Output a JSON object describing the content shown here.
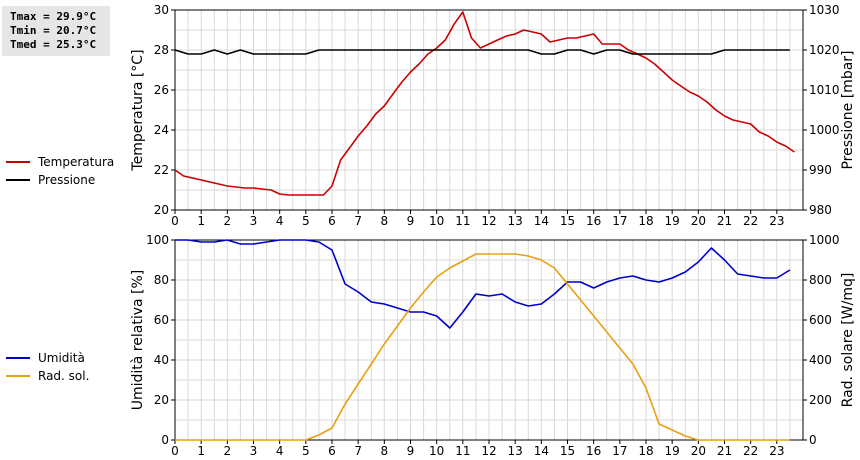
{
  "stats": {
    "tmax": "Tmax = 29.9°C",
    "tmin": "Tmin = 20.7°C",
    "tmed": "Tmed = 25.3°C"
  },
  "chart_data": [
    {
      "type": "line",
      "x_ticks": [
        0,
        1,
        2,
        3,
        4,
        5,
        6,
        7,
        8,
        9,
        10,
        11,
        12,
        13,
        14,
        15,
        16,
        17,
        18,
        19,
        20,
        21,
        22,
        23
      ],
      "xlim": [
        0,
        24
      ],
      "ylabel_left": "Temperatura [°C]",
      "ylabel_right": "Pressione [mbar]",
      "ylim_left": [
        20,
        30
      ],
      "yticks_left": [
        20,
        22,
        24,
        26,
        28,
        30
      ],
      "ylim_right": [
        980,
        1030
      ],
      "yticks_right": [
        980,
        990,
        1000,
        1010,
        1020,
        1030
      ],
      "grid": true,
      "legend_position": "left",
      "series": [
        {
          "name": "Temperatura",
          "axis": "left",
          "color": "#cc0000",
          "x": [
            0,
            0.33,
            0.67,
            1,
            1.33,
            1.67,
            2,
            2.33,
            2.67,
            3,
            3.33,
            3.67,
            4,
            4.33,
            4.67,
            5,
            5.33,
            5.67,
            6,
            6.33,
            6.67,
            7,
            7.33,
            7.67,
            8,
            8.33,
            8.67,
            9,
            9.33,
            9.67,
            10,
            10.33,
            10.67,
            11,
            11.33,
            11.67,
            12,
            12.33,
            12.67,
            13,
            13.33,
            13.67,
            14,
            14.33,
            14.67,
            15,
            15.33,
            15.67,
            16,
            16.33,
            16.67,
            17,
            17.33,
            17.67,
            18,
            18.33,
            18.67,
            19,
            19.33,
            19.67,
            20,
            20.33,
            20.67,
            21,
            21.33,
            21.67,
            22,
            22.33,
            22.67,
            23,
            23.33,
            23.67
          ],
          "values": [
            22.0,
            21.7,
            21.6,
            21.5,
            21.4,
            21.3,
            21.2,
            21.15,
            21.1,
            21.1,
            21.05,
            21.0,
            20.8,
            20.75,
            20.75,
            20.75,
            20.75,
            20.75,
            21.2,
            22.5,
            23.1,
            23.7,
            24.2,
            24.8,
            25.2,
            25.8,
            26.4,
            26.9,
            27.3,
            27.8,
            28.1,
            28.5,
            29.3,
            29.9,
            28.6,
            28.1,
            28.3,
            28.5,
            28.7,
            28.8,
            29.0,
            28.9,
            28.8,
            28.4,
            28.5,
            28.6,
            28.6,
            28.7,
            28.8,
            28.3,
            28.3,
            28.3,
            28.0,
            27.8,
            27.6,
            27.3,
            26.9,
            26.5,
            26.2,
            25.9,
            25.7,
            25.4,
            25.0,
            24.7,
            24.5,
            24.4,
            24.3,
            23.9,
            23.7,
            23.4,
            23.2,
            22.9
          ]
        },
        {
          "name": "Pressione",
          "axis": "right",
          "color": "#000000",
          "x": [
            0,
            0.5,
            1,
            1.5,
            2,
            2.5,
            3,
            3.5,
            4,
            4.5,
            5,
            5.5,
            6,
            6.5,
            7,
            7.5,
            8,
            8.5,
            9,
            9.5,
            10,
            10.5,
            11,
            11.5,
            12,
            12.5,
            13,
            13.5,
            14,
            14.5,
            15,
            15.5,
            16,
            16.5,
            17,
            17.5,
            18,
            18.5,
            19,
            19.5,
            20,
            20.5,
            21,
            21.5,
            22,
            22.5,
            23,
            23.5
          ],
          "values": [
            1020,
            1019,
            1019,
            1020,
            1019,
            1020,
            1019,
            1019,
            1019,
            1019,
            1019,
            1020,
            1020,
            1020,
            1020,
            1020,
            1020,
            1020,
            1020,
            1020,
            1020,
            1020,
            1020,
            1020,
            1020,
            1020,
            1020,
            1020,
            1019,
            1019,
            1020,
            1020,
            1019,
            1020,
            1020,
            1019,
            1019,
            1019,
            1019,
            1019,
            1019,
            1019,
            1020,
            1020,
            1020,
            1020,
            1020,
            1020
          ]
        }
      ]
    },
    {
      "type": "line",
      "x_ticks": [
        0,
        1,
        2,
        3,
        4,
        5,
        6,
        7,
        8,
        9,
        10,
        11,
        12,
        13,
        14,
        15,
        16,
        17,
        18,
        19,
        20,
        21,
        22,
        23
      ],
      "xlim": [
        0,
        24
      ],
      "ylabel_left": "Umidità relativa [%]",
      "ylabel_right": "Rad. solare [W/mq]",
      "ylim_left": [
        0,
        100
      ],
      "yticks_left": [
        0,
        20,
        40,
        60,
        80,
        100
      ],
      "ylim_right": [
        0,
        1000
      ],
      "yticks_right": [
        0,
        200,
        400,
        600,
        800,
        1000
      ],
      "grid": true,
      "legend_position": "left",
      "series": [
        {
          "name": "Umidità",
          "axis": "left",
          "color": "#0000cc",
          "x": [
            0,
            0.5,
            1,
            1.5,
            2,
            2.5,
            3,
            3.5,
            4,
            4.5,
            5,
            5.5,
            6,
            6.5,
            7,
            7.5,
            8,
            8.5,
            9,
            9.5,
            10,
            10.5,
            11,
            11.5,
            12,
            12.5,
            13,
            13.5,
            14,
            14.5,
            15,
            15.5,
            16,
            16.5,
            17,
            17.5,
            18,
            18.5,
            19,
            19.5,
            20,
            20.5,
            21,
            21.5,
            22,
            22.5,
            23,
            23.5
          ],
          "values": [
            100,
            100,
            99,
            99,
            100,
            98,
            98,
            99,
            100,
            100,
            100,
            99,
            95,
            78,
            74,
            69,
            68,
            66,
            64,
            64,
            62,
            56,
            64,
            73,
            72,
            73,
            69,
            67,
            68,
            73,
            79,
            79,
            76,
            79,
            81,
            82,
            80,
            79,
            81,
            84,
            89,
            96,
            90,
            83,
            82,
            81,
            81,
            85
          ]
        },
        {
          "name": "Rad. sol.",
          "axis": "right",
          "color": "#e8a010",
          "x": [
            0,
            0.5,
            1,
            1.5,
            2,
            2.5,
            3,
            3.5,
            4,
            4.5,
            5,
            5.5,
            6,
            6.5,
            7,
            7.5,
            8,
            8.5,
            9,
            9.5,
            10,
            10.5,
            11,
            11.5,
            12,
            12.5,
            13,
            13.5,
            14,
            14.5,
            15,
            15.5,
            16,
            16.5,
            17,
            17.5,
            18,
            18.5,
            19,
            19.5,
            20,
            20.5,
            21,
            21.5,
            22,
            22.5,
            23,
            23.5
          ],
          "values": [
            0,
            0,
            0,
            0,
            0,
            0,
            0,
            0,
            0,
            0,
            0,
            25,
            60,
            180,
            280,
            380,
            480,
            570,
            660,
            740,
            815,
            860,
            895,
            930,
            930,
            930,
            930,
            920,
            900,
            860,
            780,
            700,
            620,
            540,
            460,
            380,
            260,
            80,
            50,
            20,
            0,
            0,
            0,
            0,
            0,
            0,
            0,
            0
          ]
        }
      ]
    }
  ]
}
